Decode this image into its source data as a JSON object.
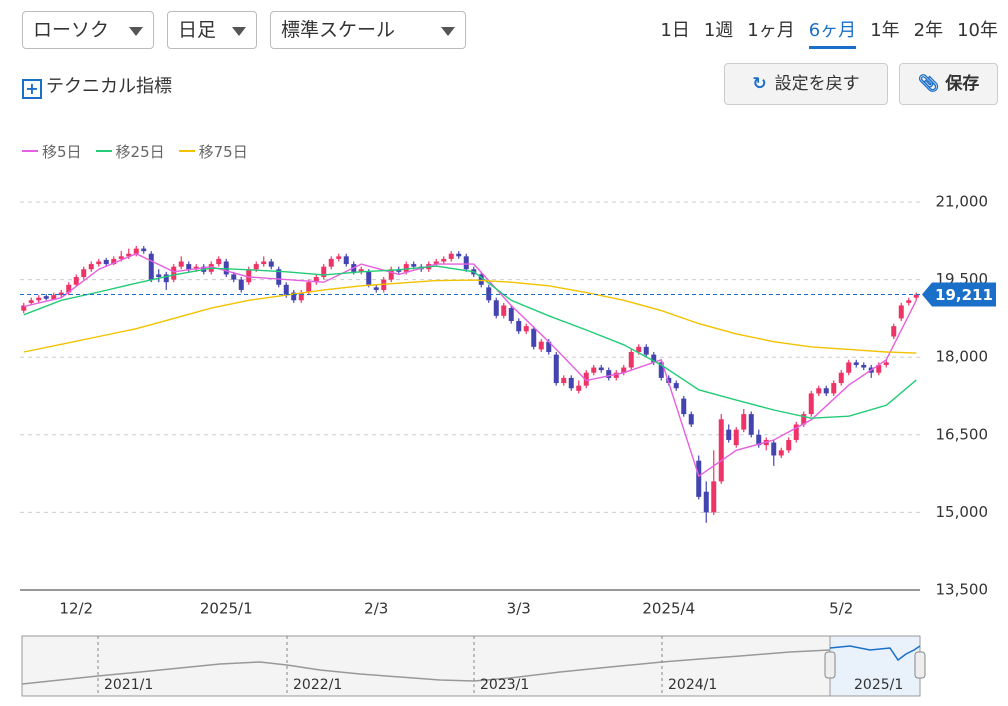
{
  "controls": {
    "chart_kind": "ローソク",
    "interval": "日足",
    "scale": "標準スケール",
    "technical": "テクニカル指標",
    "reset": "設定を戻す",
    "save": "保存"
  },
  "periods": {
    "items": [
      "1日",
      "1週",
      "1ヶ月",
      "6ヶ月",
      "1年",
      "2年",
      "10年"
    ],
    "selected_index": 3
  },
  "navigator": {
    "labels": [
      "2021/1",
      "2022/1",
      "2023/1",
      "2024/1",
      "2025/1"
    ]
  },
  "chart_data": {
    "type": "candlestick",
    "up_color": "#ee3366",
    "down_color": "#4444b0",
    "ylim": [
      13500,
      21000
    ],
    "yticks": [
      {
        "value": 13500,
        "label": "13,500"
      },
      {
        "value": 15000,
        "label": "15,000"
      },
      {
        "value": 16500,
        "label": "16,500"
      },
      {
        "value": 18000,
        "label": "18,000"
      },
      {
        "value": 19500,
        "label": "19,500"
      },
      {
        "value": 21000,
        "label": "21,000"
      }
    ],
    "xlim": [
      -0.5,
      119.5
    ],
    "xticks": [
      {
        "value": 7,
        "label": "12/2"
      },
      {
        "value": 27,
        "label": "2025/1"
      },
      {
        "value": 47,
        "label": "2/3"
      },
      {
        "value": 66,
        "label": "3/3"
      },
      {
        "value": 86,
        "label": "2025/4"
      },
      {
        "value": 109,
        "label": "5/2"
      }
    ],
    "grid": true,
    "last_price": {
      "value": 19211,
      "label": "19,211",
      "color": "#1a6fc9"
    },
    "ohlc": [
      [
        18900,
        19050,
        18850,
        19000
      ],
      [
        19050,
        19150,
        19000,
        19100
      ],
      [
        19100,
        19200,
        19050,
        19150
      ],
      [
        19180,
        19220,
        19100,
        19130
      ],
      [
        19120,
        19250,
        19100,
        19200
      ],
      [
        19200,
        19300,
        19150,
        19250
      ],
      [
        19250,
        19450,
        19200,
        19400
      ],
      [
        19400,
        19600,
        19380,
        19550
      ],
      [
        19550,
        19750,
        19500,
        19700
      ],
      [
        19700,
        19850,
        19650,
        19800
      ],
      [
        19800,
        19900,
        19750,
        19850
      ],
      [
        19880,
        19920,
        19750,
        19800
      ],
      [
        19800,
        19950,
        19780,
        19900
      ],
      [
        19900,
        20050,
        19850,
        19950
      ],
      [
        19950,
        20100,
        19900,
        20000
      ],
      [
        20000,
        20150,
        19950,
        20100
      ],
      [
        20100,
        20150,
        20000,
        20050
      ],
      [
        20000,
        20050,
        19450,
        19500
      ],
      [
        19600,
        19700,
        19450,
        19550
      ],
      [
        19600,
        19650,
        19300,
        19450
      ],
      [
        19500,
        19800,
        19450,
        19750
      ],
      [
        19750,
        19950,
        19700,
        19850
      ],
      [
        19800,
        19850,
        19650,
        19700
      ],
      [
        19700,
        19800,
        19650,
        19750
      ],
      [
        19750,
        19800,
        19600,
        19650
      ],
      [
        19650,
        19850,
        19600,
        19800
      ],
      [
        19800,
        19950,
        19750,
        19900
      ],
      [
        19850,
        19900,
        19550,
        19600
      ],
      [
        19600,
        19650,
        19450,
        19500
      ],
      [
        19500,
        19550,
        19250,
        19300
      ],
      [
        19450,
        19750,
        19400,
        19700
      ],
      [
        19700,
        19850,
        19650,
        19800
      ],
      [
        19800,
        19950,
        19750,
        19850
      ],
      [
        19850,
        19900,
        19700,
        19750
      ],
      [
        19700,
        19750,
        19350,
        19400
      ],
      [
        19400,
        19450,
        19150,
        19200
      ],
      [
        19250,
        19300,
        19050,
        19100
      ],
      [
        19100,
        19300,
        19050,
        19250
      ],
      [
        19250,
        19500,
        19200,
        19450
      ],
      [
        19450,
        19600,
        19400,
        19550
      ],
      [
        19550,
        19800,
        19500,
        19750
      ],
      [
        19750,
        19950,
        19700,
        19900
      ],
      [
        19900,
        20000,
        19850,
        19950
      ],
      [
        19950,
        20000,
        19750,
        19800
      ],
      [
        19800,
        19850,
        19600,
        19650
      ],
      [
        19650,
        19750,
        19600,
        19700
      ],
      [
        19650,
        19700,
        19350,
        19400
      ],
      [
        19350,
        19400,
        19250,
        19300
      ],
      [
        19300,
        19550,
        19250,
        19500
      ],
      [
        19500,
        19750,
        19450,
        19700
      ],
      [
        19700,
        19750,
        19600,
        19650
      ],
      [
        19650,
        19850,
        19600,
        19800
      ],
      [
        19800,
        19850,
        19700,
        19750
      ],
      [
        19750,
        19800,
        19650,
        19700
      ],
      [
        19700,
        19850,
        19650,
        19800
      ],
      [
        19800,
        19900,
        19750,
        19850
      ],
      [
        19850,
        19950,
        19800,
        19900
      ],
      [
        19900,
        20050,
        19850,
        20000
      ],
      [
        20000,
        20050,
        19900,
        19950
      ],
      [
        19950,
        20000,
        19650,
        19700
      ],
      [
        19700,
        19750,
        19550,
        19600
      ],
      [
        19600,
        19650,
        19350,
        19400
      ],
      [
        19350,
        19400,
        19050,
        19100
      ],
      [
        19100,
        19150,
        18750,
        18800
      ],
      [
        18800,
        19050,
        18750,
        19000
      ],
      [
        18950,
        19000,
        18650,
        18700
      ],
      [
        18700,
        18750,
        18450,
        18500
      ],
      [
        18500,
        18650,
        18450,
        18600
      ],
      [
        18550,
        18600,
        18150,
        18200
      ],
      [
        18150,
        18350,
        18100,
        18300
      ],
      [
        18300,
        18350,
        18050,
        18100
      ],
      [
        18050,
        18100,
        17450,
        17500
      ],
      [
        17500,
        17650,
        17450,
        17600
      ],
      [
        17600,
        17650,
        17350,
        17400
      ],
      [
        17350,
        17550,
        17300,
        17450
      ],
      [
        17450,
        17750,
        17400,
        17700
      ],
      [
        17700,
        17850,
        17650,
        17800
      ],
      [
        17800,
        17850,
        17700,
        17750
      ],
      [
        17750,
        17800,
        17550,
        17600
      ],
      [
        17600,
        17750,
        17550,
        17700
      ],
      [
        17700,
        17850,
        17650,
        17800
      ],
      [
        17800,
        18150,
        17750,
        18100
      ],
      [
        18100,
        18250,
        18050,
        18200
      ],
      [
        18200,
        18250,
        18000,
        18050
      ],
      [
        18050,
        18100,
        17850,
        17900
      ],
      [
        17900,
        17950,
        17550,
        17600
      ],
      [
        17600,
        17650,
        17450,
        17500
      ],
      [
        17500,
        17550,
        17350,
        17400
      ],
      [
        17200,
        17250,
        16850,
        16900
      ],
      [
        16900,
        16950,
        16650,
        16700
      ],
      [
        16000,
        16100,
        15250,
        15300
      ],
      [
        15400,
        15600,
        14800,
        15000
      ],
      [
        15000,
        16200,
        14950,
        15600
      ],
      [
        15600,
        16900,
        15550,
        16800
      ],
      [
        16600,
        16700,
        16350,
        16400
      ],
      [
        16300,
        16650,
        16250,
        16600
      ],
      [
        16600,
        17000,
        16550,
        16900
      ],
      [
        16900,
        16950,
        16450,
        16500
      ],
      [
        16500,
        16600,
        16250,
        16300
      ],
      [
        16300,
        16450,
        16200,
        16400
      ],
      [
        16350,
        16400,
        15900,
        16100
      ],
      [
        16100,
        16250,
        16050,
        16200
      ],
      [
        16200,
        16450,
        16150,
        16400
      ],
      [
        16400,
        16750,
        16350,
        16700
      ],
      [
        16700,
        16950,
        16650,
        16900
      ],
      [
        16900,
        17350,
        16850,
        17300
      ],
      [
        17300,
        17450,
        17250,
        17400
      ],
      [
        17400,
        17450,
        17250,
        17300
      ],
      [
        17300,
        17550,
        17250,
        17500
      ],
      [
        17500,
        17750,
        17450,
        17700
      ],
      [
        17700,
        17950,
        17650,
        17900
      ],
      [
        17900,
        17950,
        17800,
        17850
      ],
      [
        17850,
        17900,
        17750,
        17800
      ],
      [
        17800,
        17850,
        17600,
        17700
      ],
      [
        17700,
        17900,
        17650,
        17850
      ],
      [
        17850,
        17950,
        17800,
        17900
      ],
      [
        18400,
        18650,
        18350,
        18600
      ],
      [
        18750,
        19050,
        18700,
        19000
      ],
      [
        19050,
        19150,
        19000,
        19100
      ],
      [
        19150,
        19250,
        19100,
        19211
      ]
    ],
    "series": [
      {
        "name": "移5日",
        "color": "#e55fe0",
        "x": [
          0,
          5,
          10,
          15,
          20,
          25,
          30,
          35,
          40,
          45,
          50,
          55,
          60,
          65,
          70,
          75,
          80,
          85,
          90,
          95,
          100,
          105,
          110,
          115,
          119
        ],
        "values": [
          18980,
          19150,
          19700,
          20000,
          19650,
          19750,
          19550,
          19500,
          19450,
          19800,
          19600,
          19800,
          19800,
          19000,
          18300,
          17550,
          17700,
          17950,
          15700,
          16200,
          16400,
          16790,
          17460,
          17950,
          19100
        ]
      },
      {
        "name": "移25日",
        "color": "#22cc77",
        "x": [
          0,
          5,
          10,
          15,
          20,
          25,
          30,
          35,
          40,
          45,
          50,
          55,
          60,
          65,
          70,
          75,
          80,
          85,
          90,
          95,
          100,
          105,
          110,
          115,
          119
        ],
        "values": [
          18820,
          19100,
          19260,
          19430,
          19590,
          19720,
          19690,
          19650,
          19590,
          19650,
          19690,
          19760,
          19650,
          19100,
          18800,
          18525,
          18240,
          17850,
          17370,
          17170,
          16980,
          16820,
          16860,
          17070,
          17560
        ]
      },
      {
        "name": "移75日",
        "color": "#f2c200",
        "x": [
          0,
          5,
          10,
          15,
          20,
          25,
          30,
          35,
          40,
          45,
          50,
          55,
          60,
          65,
          70,
          75,
          80,
          85,
          90,
          95,
          100,
          105,
          110,
          115,
          119
        ],
        "values": [
          18100,
          18250,
          18400,
          18550,
          18750,
          18950,
          19100,
          19200,
          19300,
          19380,
          19430,
          19480,
          19490,
          19450,
          19380,
          19250,
          19100,
          18900,
          18650,
          18450,
          18300,
          18200,
          18150,
          18100,
          18080
        ]
      }
    ]
  }
}
